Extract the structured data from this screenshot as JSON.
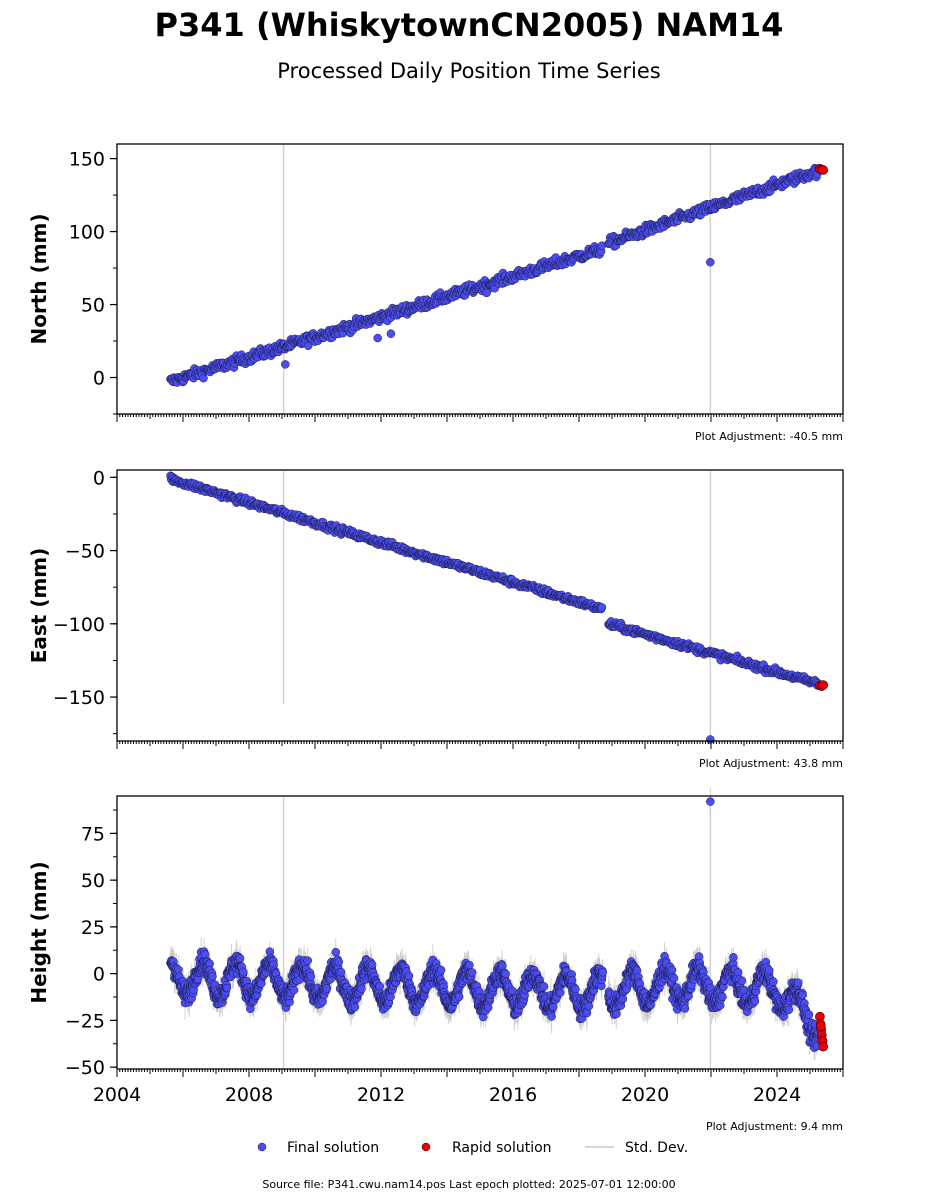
{
  "title": "P341 (WhiskytownCN2005) NAM14",
  "subtitle": "Processed Daily Position Time Series",
  "source": "Source file: P341.cwu.nam14.pos  Last epoch plotted: 2025-07-01 12:00:00",
  "legend": {
    "final": "Final solution",
    "rapid": "Rapid solution",
    "stddev": "Std. Dev."
  },
  "colors": {
    "final": "#4b4df0",
    "rapid": "#e8000b",
    "stddev": "#c8c8c8",
    "vline": "#d3d3d3"
  },
  "chart_data": [
    {
      "type": "scatter",
      "ylabel": "North (mm)",
      "adjustment": "Plot Adjustment: -40.5 mm",
      "xlim": [
        2004.0,
        2026.0
      ],
      "ylim": [
        -25,
        160
      ],
      "yticks": [
        0,
        50,
        100,
        150
      ],
      "vlines": [
        2009.05,
        2021.98
      ],
      "trend": [
        [
          2005.6,
          -3
        ],
        [
          2018.7,
          88
        ],
        [
          2018.9,
          92
        ],
        [
          2025.4,
          143
        ]
      ],
      "noise": 2.5,
      "outliers": [
        [
          2021.98,
          79
        ],
        [
          2011.9,
          27
        ],
        [
          2012.3,
          30
        ],
        [
          2009.1,
          9
        ],
        [
          2015.2,
          58
        ]
      ],
      "rapid": [
        [
          2025.3,
          143.0
        ],
        [
          2025.35,
          142.6
        ],
        [
          2025.4,
          142.2
        ]
      ]
    },
    {
      "type": "scatter",
      "ylabel": "East (mm)",
      "adjustment": "Plot Adjustment: 43.8 mm",
      "xlim": [
        2004.0,
        2026.0
      ],
      "ylim": [
        -180,
        5
      ],
      "yticks": [
        0,
        -50,
        -100,
        -150
      ],
      "vlines": [
        2009.05,
        2021.98
      ],
      "vline_extent": [
        [
          -155,
          5
        ],
        [
          -180,
          5
        ]
      ],
      "trend": [
        [
          2005.6,
          -1
        ],
        [
          2018.7,
          -90
        ],
        [
          2018.9,
          -100
        ],
        [
          2025.4,
          -142
        ]
      ],
      "noise": 1.6,
      "outliers": [
        [
          2021.98,
          -179
        ]
      ],
      "rapid": [
        [
          2025.3,
          -142.0
        ],
        [
          2025.35,
          -142.5
        ],
        [
          2025.4,
          -141.8
        ]
      ]
    },
    {
      "type": "scatter",
      "ylabel": "Height (mm)",
      "adjustment": "Plot Adjustment: 9.4 mm",
      "xlim": [
        2004.0,
        2026.0
      ],
      "ylim": [
        -51,
        95
      ],
      "yticks": [
        75,
        50,
        25,
        0,
        -25,
        -50
      ],
      "xticks": [
        2004,
        2008,
        2012,
        2016,
        2020,
        2024
      ],
      "vlines": [
        2009.05,
        2021.98
      ],
      "baseline": [
        [
          2005.6,
          -2
        ],
        [
          2018.0,
          -10
        ],
        [
          2021.0,
          -6
        ],
        [
          2024.0,
          -8
        ],
        [
          2025.4,
          -30
        ]
      ],
      "seasonal_amplitude": 9,
      "noise": 4,
      "outliers": [
        [
          2021.98,
          92
        ]
      ],
      "rapid": [
        [
          2025.3,
          -23
        ],
        [
          2025.32,
          -27
        ],
        [
          2025.34,
          -30
        ],
        [
          2025.36,
          -33
        ],
        [
          2025.38,
          -36
        ],
        [
          2025.4,
          -39
        ],
        [
          2025.33,
          -28
        ]
      ]
    }
  ]
}
